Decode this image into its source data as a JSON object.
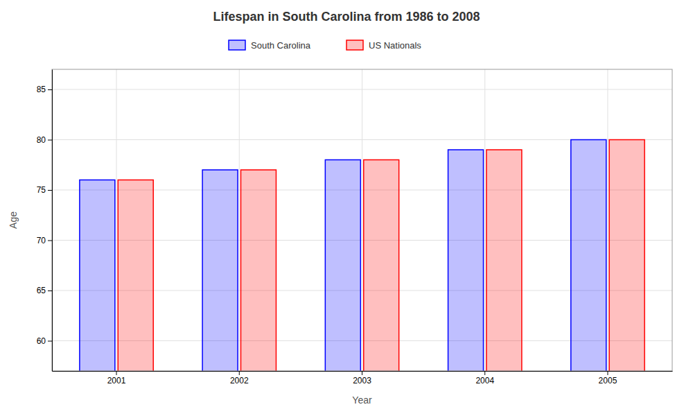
{
  "chart_data": {
    "type": "bar",
    "title": "Lifespan in South Carolina from 1986 to 2008",
    "x_label": "Year",
    "y_label": "Age",
    "categories": [
      "2001",
      "2002",
      "2003",
      "2004",
      "2005"
    ],
    "series": [
      {
        "name": "South Carolina",
        "color": "#0000ff",
        "values": [
          76,
          77,
          78,
          79,
          80
        ]
      },
      {
        "name": "US Nationals",
        "color": "#ff0000",
        "values": [
          76,
          77,
          78,
          79,
          80
        ]
      }
    ],
    "ylim": [
      57,
      87
    ],
    "yticks": [
      60,
      65,
      70,
      75,
      80,
      85
    ],
    "grid": true,
    "legend": "top"
  }
}
